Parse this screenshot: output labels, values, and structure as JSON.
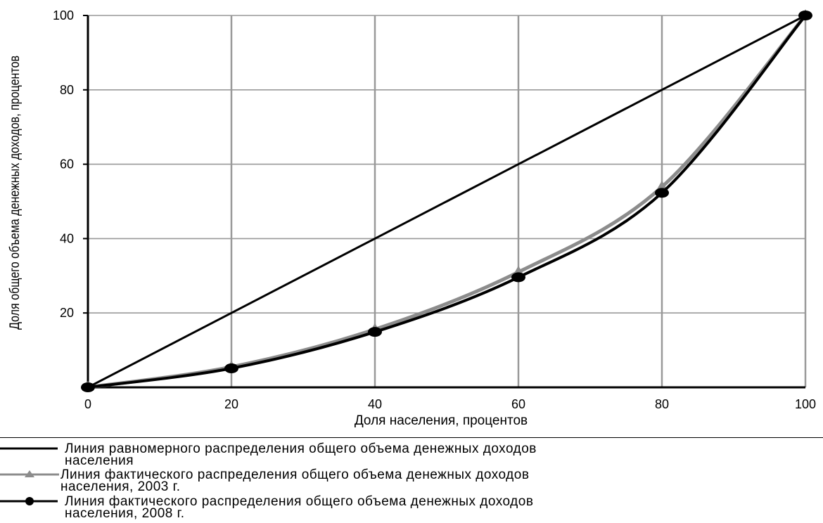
{
  "chart_data": {
    "type": "line",
    "title": "",
    "xlabel": "Доля населения, процентов",
    "ylabel": "Доля общего объема денежных доходов, процентов",
    "xlim": [
      0,
      100
    ],
    "ylim": [
      0,
      100
    ],
    "x_ticks": [
      "0",
      "20",
      "40",
      "60",
      "80",
      "100"
    ],
    "y_ticks": [
      "20",
      "40",
      "60",
      "80",
      "100"
    ],
    "grid": true,
    "legend_position": "bottom",
    "series": [
      {
        "name": "Линия равномерного распределения общего объема денежных доходов населения",
        "x": [
          0,
          20,
          40,
          60,
          80,
          100
        ],
        "y": [
          0,
          20,
          40,
          60,
          80,
          100
        ],
        "color": "#000000",
        "marker": "none"
      },
      {
        "name": "Линия фактического распределения общего объема денежных доходов населения, 2003 г.",
        "x": [
          0,
          20,
          40,
          60,
          80,
          100
        ],
        "y": [
          0,
          5.5,
          15.6,
          31.0,
          53.9,
          100
        ],
        "color": "#8c8c8c",
        "marker": "triangle"
      },
      {
        "name": "Линия фактического распределения общего объема денежных доходов населения, 2008 г.",
        "x": [
          0,
          20,
          40,
          60,
          80,
          100
        ],
        "y": [
          0,
          5.1,
          14.9,
          29.6,
          52.3,
          100
        ],
        "color": "#000000",
        "marker": "circle"
      }
    ]
  },
  "legend": {
    "items": [
      {
        "line1": "Линия равномерного распределения общего объема денежных доходов",
        "line2": "населения"
      },
      {
        "line1": "Линия фактического распределения общего объема денежных доходов",
        "line2": "населения, 2003 г."
      },
      {
        "line1": "Линия фактического распределения общего объема денежных доходов",
        "line2": "населения, 2008 г."
      }
    ]
  }
}
